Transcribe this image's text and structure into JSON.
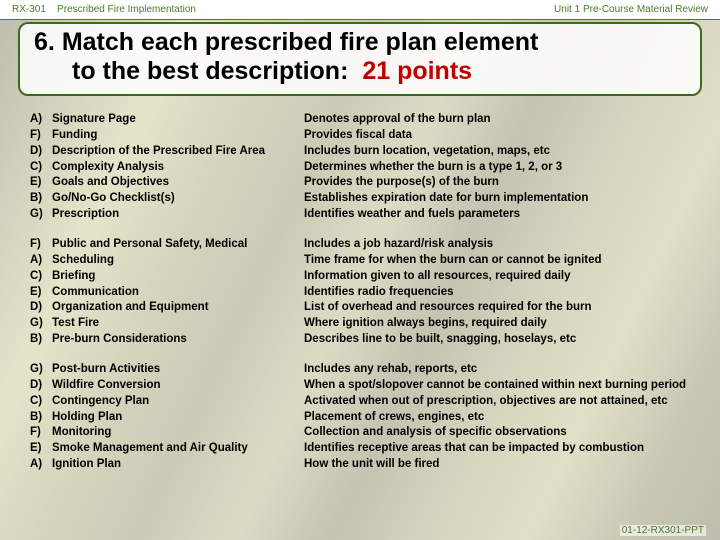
{
  "header": {
    "course_code": "RX-301",
    "course_title": "Prescribed Fire Implementation",
    "unit": "Unit 1 Pre-Course Material Review"
  },
  "question": {
    "number": "6.",
    "prompt_a": "Match each prescribed fire plan element",
    "prompt_b": "to the best description:",
    "points": "21 points"
  },
  "groups": [
    {
      "rows": [
        {
          "label": "A)",
          "element": "Signature Page",
          "desc": "Denotes approval of the burn plan"
        },
        {
          "label": "F)",
          "element": "Funding",
          "desc": "Provides fiscal data"
        },
        {
          "label": "D)",
          "element": "Description of the Prescribed Fire Area",
          "desc": "Includes burn location, vegetation, maps, etc"
        },
        {
          "label": "C)",
          "element": "Complexity Analysis",
          "desc": "Determines whether the burn is a type 1, 2, or 3"
        },
        {
          "label": "E)",
          "element": "Goals and Objectives",
          "desc": "Provides the purpose(s) of the burn"
        },
        {
          "label": "B)",
          "element": "Go/No-Go Checklist(s)",
          "desc": "Establishes expiration date for burn implementation"
        },
        {
          "label": "G)",
          "element": "Prescription",
          "desc": "Identifies weather and fuels parameters"
        }
      ]
    },
    {
      "rows": [
        {
          "label": "F)",
          "element": "Public and Personal Safety, Medical",
          "desc": "Includes a job hazard/risk analysis"
        },
        {
          "label": "A)",
          "element": "Scheduling",
          "desc": "Time frame for when the burn can or cannot be ignited"
        },
        {
          "label": "C)",
          "element": "Briefing",
          "desc": "Information given to all resources, required daily"
        },
        {
          "label": "E)",
          "element": "Communication",
          "desc": "Identifies radio frequencies"
        },
        {
          "label": "D)",
          "element": "Organization and Equipment",
          "desc": "List of overhead and resources required for the burn"
        },
        {
          "label": "G)",
          "element": "Test Fire",
          "desc": "Where ignition always begins, required daily"
        },
        {
          "label": "B)",
          "element": "Pre-burn Considerations",
          "desc": "Describes line to be built, snagging, hoselays, etc"
        }
      ]
    },
    {
      "rows": [
        {
          "label": "G)",
          "element": "Post-burn Activities",
          "desc": "Includes any rehab, reports, etc"
        },
        {
          "label": "D)",
          "element": "Wildfire Conversion",
          "desc": "When a spot/slopover cannot be contained within next burning period"
        },
        {
          "label": "C)",
          "element": "Contingency Plan",
          "desc": "Activated when out of prescription, objectives are not attained, etc"
        },
        {
          "label": "B)",
          "element": "Holding Plan",
          "desc": "Placement of crews, engines, etc"
        },
        {
          "label": "F)",
          "element": "Monitoring",
          "desc": "Collection and analysis of specific observations"
        },
        {
          "label": "E)",
          "element": "Smoke Management and Air Quality",
          "desc": "Identifies receptive areas that can be impacted by combustion"
        },
        {
          "label": "A)",
          "element": "Ignition Plan",
          "desc": "How the unit will be fired"
        }
      ]
    }
  ],
  "footer": "01-12-RX301-PPT"
}
